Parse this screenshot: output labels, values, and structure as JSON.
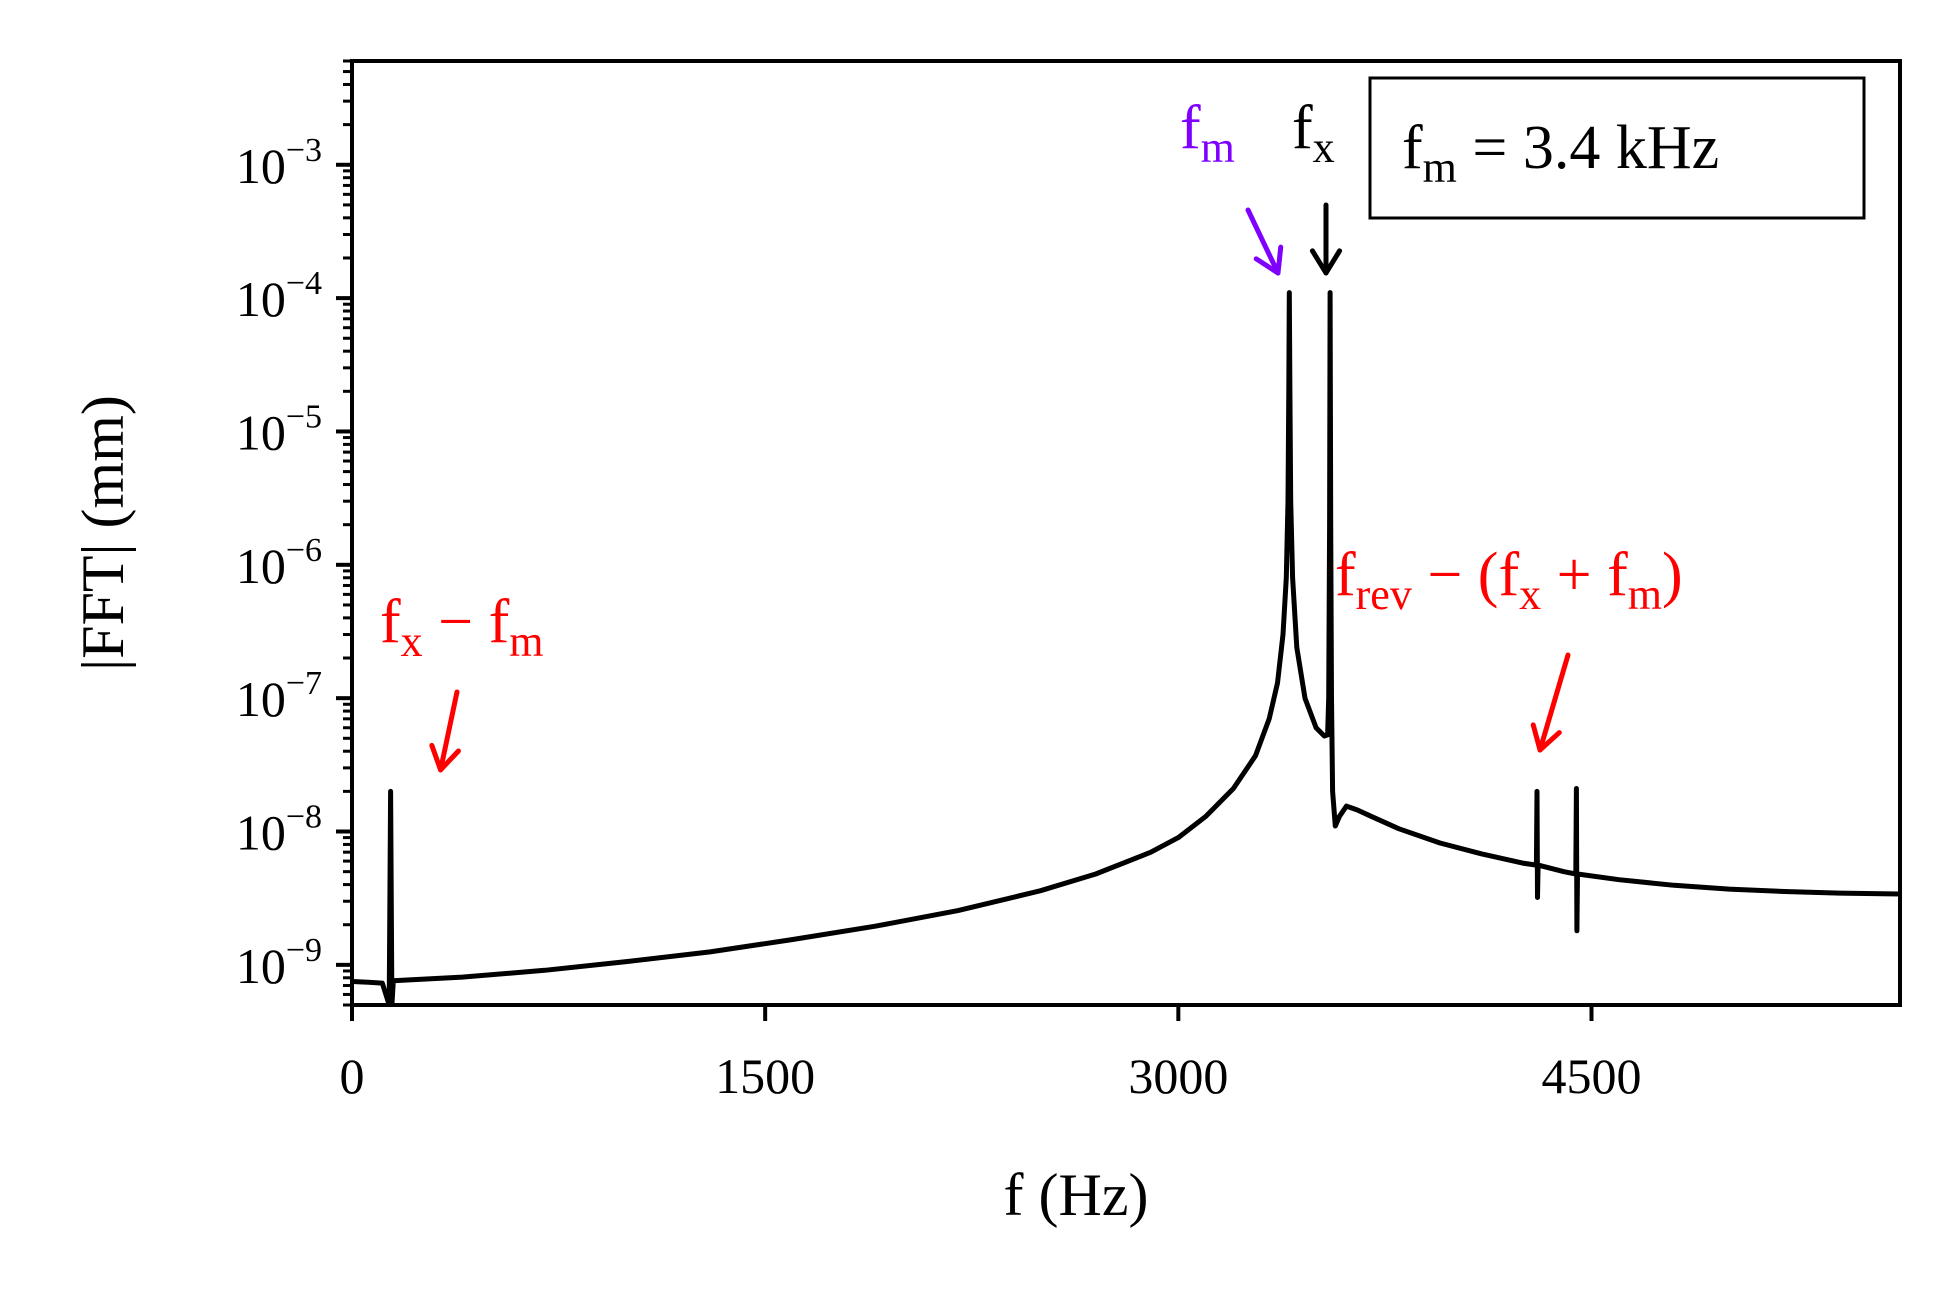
{
  "chart_data": {
    "type": "line",
    "title": "",
    "xlabel": "f (Hz)",
    "ylabel": "|FFT| (mm)",
    "xlim": [
      0,
      5620
    ],
    "ylim": [
      5e-10,
      0.006
    ],
    "yscale": "log",
    "grid": false,
    "x_ticks": [
      0,
      1500,
      3000,
      4500
    ],
    "y_ticks": [
      {
        "value": 1e-09,
        "mant": "10",
        "exp": "−9"
      },
      {
        "value": 1e-08,
        "mant": "10",
        "exp": "−8"
      },
      {
        "value": 1e-07,
        "mant": "10",
        "exp": "−7"
      },
      {
        "value": 1e-06,
        "mant": "10",
        "exp": "−6"
      },
      {
        "value": 1e-05,
        "mant": "10",
        "exp": "−5"
      },
      {
        "value": 0.0001,
        "mant": "10",
        "exp": "−4"
      },
      {
        "value": 0.001,
        "mant": "10",
        "exp": "−3"
      }
    ],
    "series": [
      {
        "color": "#000000",
        "points": [
          [
            0,
            7.5e-10
          ],
          [
            60,
            7.4e-10
          ],
          [
            110,
            7.3e-10
          ],
          [
            135,
            5e-10
          ],
          [
            140,
            2e-08
          ],
          [
            145,
            5e-10
          ],
          [
            150,
            7.6e-10
          ],
          [
            200,
            7.7e-10
          ],
          [
            400,
            8.1e-10
          ],
          [
            700,
            9.1e-10
          ],
          [
            1000,
            1.06e-09
          ],
          [
            1300,
            1.25e-09
          ],
          [
            1600,
            1.55e-09
          ],
          [
            1900,
            1.95e-09
          ],
          [
            2200,
            2.55e-09
          ],
          [
            2500,
            3.6e-09
          ],
          [
            2700,
            4.8e-09
          ],
          [
            2900,
            7e-09
          ],
          [
            3000,
            9e-09
          ],
          [
            3100,
            1.3e-08
          ],
          [
            3200,
            2.1e-08
          ],
          [
            3280,
            3.7e-08
          ],
          [
            3330,
            7e-08
          ],
          [
            3360,
            1.3e-07
          ],
          [
            3380,
            3e-07
          ],
          [
            3392,
            8e-07
          ],
          [
            3398,
            3e-06
          ],
          [
            3401,
            2e-05
          ],
          [
            3403,
            0.00011
          ],
          [
            3405,
            2e-05
          ],
          [
            3408,
            3e-06
          ],
          [
            3415,
            8e-07
          ],
          [
            3430,
            2.4e-07
          ],
          [
            3460,
            1e-07
          ],
          [
            3500,
            6e-08
          ],
          [
            3530,
            5.2e-08
          ],
          [
            3542,
            5.3e-08
          ],
          [
            3546,
            1e-07
          ],
          [
            3549,
            2e-06
          ],
          [
            3551,
            0.00011
          ],
          [
            3553,
            2e-06
          ],
          [
            3556,
            1e-07
          ],
          [
            3560,
            2e-08
          ],
          [
            3570,
            1.1e-08
          ],
          [
            3585,
            1.3e-08
          ],
          [
            3610,
            1.55e-08
          ],
          [
            3650,
            1.45e-08
          ],
          [
            3700,
            1.3e-08
          ],
          [
            3800,
            1.05e-08
          ],
          [
            3950,
            8.2e-09
          ],
          [
            4100,
            6.8e-09
          ],
          [
            4250,
            5.8e-09
          ],
          [
            4300,
            5.6e-09
          ],
          [
            4302,
            2e-08
          ],
          [
            4304,
            3.2e-09
          ],
          [
            4306,
            5.6e-09
          ],
          [
            4400,
            5e-09
          ],
          [
            4443,
            4.8e-09
          ],
          [
            4445,
            2.1e-08
          ],
          [
            4447,
            1.8e-09
          ],
          [
            4449,
            4.8e-09
          ],
          [
            4600,
            4.35e-09
          ],
          [
            4800,
            3.95e-09
          ],
          [
            5000,
            3.7e-09
          ],
          [
            5200,
            3.55e-09
          ],
          [
            5400,
            3.45e-09
          ],
          [
            5620,
            3.4e-09
          ]
        ]
      }
    ],
    "annotations": [
      {
        "id": "fx_minus_fm",
        "color": "#ff0000",
        "base": "f",
        "sub1": "x",
        "op": " − ",
        "base2": "f",
        "sub2": "m",
        "tip": [
          140,
          2.8e-08
        ]
      },
      {
        "id": "fm",
        "color": "#7f00ff",
        "base": "f",
        "sub": "m",
        "tip": [
          3340,
          0.00015
        ]
      },
      {
        "id": "fx",
        "color": "#000000",
        "base": "f",
        "sub": "x",
        "tip": [
          3540,
          0.00015
        ]
      },
      {
        "id": "frev",
        "color": "#ff0000",
        "parts": [
          "f",
          "rev",
          " − (",
          "f",
          "x",
          " + ",
          "f",
          "m",
          ")"
        ],
        "tip": [
          4290,
          4.2e-08
        ]
      }
    ],
    "legend_box": {
      "placement": "top-right",
      "parts": [
        "f",
        "m",
        " = 3.4 kHz"
      ]
    }
  }
}
